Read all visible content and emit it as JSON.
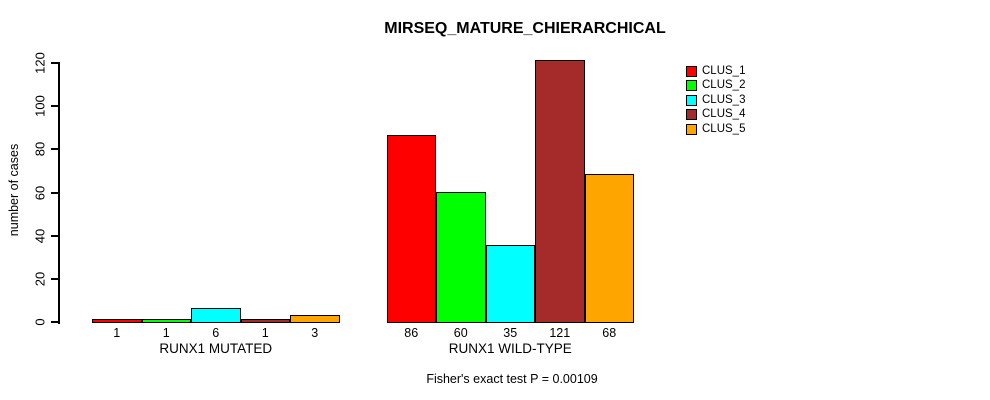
{
  "chart_data": {
    "type": "bar",
    "title": "MIRSEQ_MATURE_CHIERARCHICAL",
    "ylabel": "number of cases",
    "xlabel": "",
    "ylim": [
      0,
      120
    ],
    "yticks": [
      0,
      20,
      40,
      60,
      80,
      100,
      120
    ],
    "grid": false,
    "legend_position": "top-right",
    "series": [
      {
        "name": "CLUS_1",
        "color": "#ff0000"
      },
      {
        "name": "CLUS_2",
        "color": "#00ff00"
      },
      {
        "name": "CLUS_3",
        "color": "#00ffff"
      },
      {
        "name": "CLUS_4",
        "color": "#a52a2a"
      },
      {
        "name": "CLUS_5",
        "color": "#ffa500"
      }
    ],
    "groups": [
      {
        "label": "RUNX1 MUTATED",
        "values": [
          1,
          1,
          6,
          1,
          3
        ]
      },
      {
        "label": "RUNX1 WILD-TYPE",
        "values": [
          86,
          60,
          35,
          121,
          68
        ]
      }
    ],
    "bar_value_labels": true,
    "annotation": "Fisher's exact test P = 0.00109"
  }
}
